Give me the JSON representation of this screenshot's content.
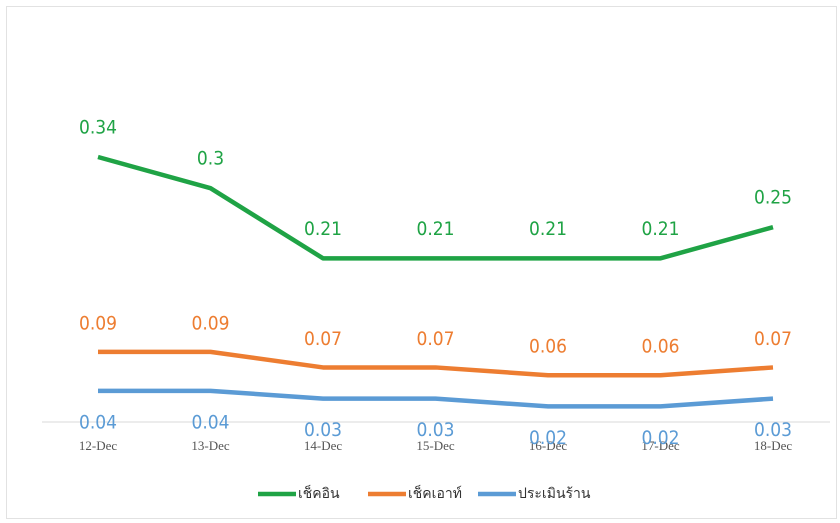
{
  "chart_data": {
    "type": "line",
    "categories": [
      "12-Dec",
      "13-Dec",
      "14-Dec",
      "15-Dec",
      "16-Dec",
      "17-Dec",
      "18-Dec"
    ],
    "series": [
      {
        "name": "เช็คอิน",
        "color": "#1fa345",
        "values": [
          0.34,
          0.3,
          0.21,
          0.21,
          0.21,
          0.21,
          0.25
        ]
      },
      {
        "name": "เช็คเอาท์",
        "color": "#ed7d31",
        "values": [
          0.09,
          0.09,
          0.07,
          0.07,
          0.06,
          0.06,
          0.07
        ]
      },
      {
        "name": "ประเมินร้าน",
        "color": "#5b9bd5",
        "values": [
          0.04,
          0.04,
          0.03,
          0.03,
          0.02,
          0.02,
          0.03
        ]
      }
    ],
    "legend": "bottom"
  }
}
